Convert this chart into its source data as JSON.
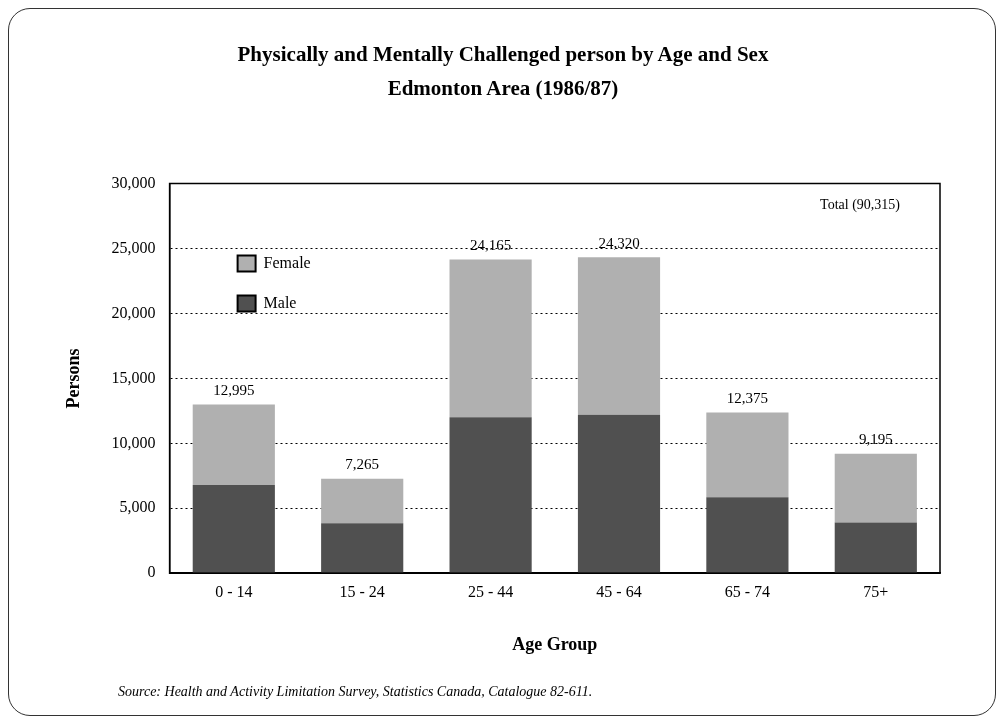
{
  "chart_data": {
    "type": "bar",
    "title": "Physically and Mentally Challenged person by Age and Sex",
    "subtitle": "Edmonton Area (1986/87)",
    "xlabel": "Age Group",
    "ylabel": "Persons",
    "categories": [
      "0 - 14",
      "15 - 24",
      "25 - 44",
      "45 - 64",
      "65 - 74",
      "75+"
    ],
    "series": [
      {
        "name": "Male",
        "color": "#505050",
        "values": [
          6800,
          3850,
          12000,
          12200,
          5850,
          3900
        ]
      },
      {
        "name": "Female",
        "color": "#b0b0b0",
        "values": [
          6195,
          3415,
          12165,
          12120,
          6525,
          5295
        ]
      }
    ],
    "stacked": true,
    "totals": [
      "12,995",
      "7,265",
      "24,165",
      "24,320",
      "12,375",
      "9,195"
    ],
    "ylim": [
      0,
      30000
    ],
    "yticks": [
      {
        "value": 0,
        "label": "0"
      },
      {
        "value": 5000,
        "label": "5,000"
      },
      {
        "value": 10000,
        "label": "10,000"
      },
      {
        "value": 15000,
        "label": "15,000"
      },
      {
        "value": 20000,
        "label": "20,000"
      },
      {
        "value": 25000,
        "label": "25,000"
      },
      {
        "value": 30000,
        "label": "30,000"
      }
    ],
    "grid": "y",
    "legend": "top left",
    "annotations": [
      "Total (90,315)",
      "Source: Health and Activity Limitation Survey, Statistics Canada, Catalogue 82-611."
    ]
  }
}
